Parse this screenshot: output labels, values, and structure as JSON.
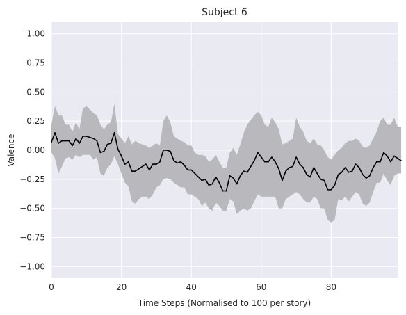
{
  "chart_data": {
    "type": "line",
    "title": "Subject 6",
    "xlabel": "Time Steps (Normalised to 100 per story)",
    "ylabel": "Valence",
    "xlim": [
      0,
      99
    ],
    "ylim": [
      -1.1,
      1.1
    ],
    "grid": true,
    "xticks": [
      0,
      20,
      40,
      60,
      80
    ],
    "xtick_labels": [
      "0",
      "20",
      "40",
      "60",
      "80"
    ],
    "yticks": [
      1.0,
      0.75,
      0.5,
      0.25,
      0.0,
      -0.25,
      -0.5,
      -0.75,
      -1.0
    ],
    "ytick_labels": [
      "1.00",
      "0.75",
      "0.50",
      "0.25",
      "0.00",
      "−0.25",
      "−0.50",
      "−0.75",
      "−1.00"
    ],
    "colors": {
      "line": "#000000",
      "band": "#b9b8bd",
      "plot_bg": "#eaeaf2",
      "grid": "#ffffff"
    },
    "series": [
      {
        "values": [
          0.07,
          0.15,
          0.06,
          0.08,
          0.08,
          0.08,
          0.04,
          0.1,
          0.06,
          0.12,
          0.12,
          0.11,
          0.1,
          0.08,
          -0.02,
          -0.01,
          0.05,
          0.06,
          0.15,
          0.01,
          -0.05,
          -0.12,
          -0.1,
          -0.18,
          -0.18,
          -0.16,
          -0.14,
          -0.12,
          -0.17,
          -0.12,
          -0.12,
          -0.1,
          0.0,
          0.0,
          -0.01,
          -0.09,
          -0.11,
          -0.1,
          -0.13,
          -0.17,
          -0.17,
          -0.2,
          -0.23,
          -0.26,
          -0.25,
          -0.3,
          -0.29,
          -0.23,
          -0.28,
          -0.35,
          -0.35,
          -0.22,
          -0.24,
          -0.29,
          -0.22,
          -0.18,
          -0.19,
          -0.14,
          -0.09,
          -0.02,
          -0.06,
          -0.1,
          -0.1,
          -0.06,
          -0.1,
          -0.16,
          -0.26,
          -0.18,
          -0.15,
          -0.14,
          -0.06,
          -0.12,
          -0.15,
          -0.21,
          -0.23,
          -0.15,
          -0.2,
          -0.25,
          -0.26,
          -0.34,
          -0.34,
          -0.3,
          -0.21,
          -0.19,
          -0.15,
          -0.19,
          -0.18,
          -0.12,
          -0.15,
          -0.21,
          -0.24,
          -0.22,
          -0.15,
          -0.1,
          -0.1,
          -0.02,
          -0.05,
          -0.1,
          -0.05,
          -0.07,
          -0.09
        ],
        "lower": [
          -0.02,
          -0.07,
          -0.2,
          -0.14,
          -0.07,
          -0.06,
          -0.08,
          -0.04,
          -0.06,
          -0.04,
          -0.04,
          -0.04,
          -0.08,
          -0.06,
          -0.2,
          -0.22,
          -0.15,
          -0.12,
          -0.05,
          -0.12,
          -0.2,
          -0.28,
          -0.31,
          -0.44,
          -0.46,
          -0.42,
          -0.4,
          -0.4,
          -0.42,
          -0.38,
          -0.32,
          -0.3,
          -0.25,
          -0.24,
          -0.25,
          -0.28,
          -0.3,
          -0.32,
          -0.32,
          -0.38,
          -0.38,
          -0.4,
          -0.42,
          -0.48,
          -0.45,
          -0.5,
          -0.52,
          -0.45,
          -0.48,
          -0.52,
          -0.52,
          -0.42,
          -0.44,
          -0.55,
          -0.52,
          -0.5,
          -0.52,
          -0.5,
          -0.44,
          -0.38,
          -0.4,
          -0.4,
          -0.4,
          -0.4,
          -0.4,
          -0.5,
          -0.5,
          -0.42,
          -0.4,
          -0.38,
          -0.36,
          -0.38,
          -0.42,
          -0.45,
          -0.45,
          -0.4,
          -0.42,
          -0.5,
          -0.5,
          -0.6,
          -0.62,
          -0.6,
          -0.42,
          -0.43,
          -0.4,
          -0.44,
          -0.4,
          -0.36,
          -0.38,
          -0.46,
          -0.48,
          -0.45,
          -0.36,
          -0.28,
          -0.28,
          -0.2,
          -0.26,
          -0.3,
          -0.22,
          -0.2,
          -0.2
        ],
        "upper": [
          0.22,
          0.38,
          0.3,
          0.3,
          0.22,
          0.22,
          0.16,
          0.24,
          0.18,
          0.36,
          0.38,
          0.35,
          0.32,
          0.3,
          0.22,
          0.18,
          0.22,
          0.24,
          0.4,
          0.14,
          0.1,
          0.06,
          0.12,
          0.05,
          0.08,
          0.06,
          0.05,
          0.04,
          0.02,
          0.04,
          0.06,
          0.04,
          0.25,
          0.3,
          0.24,
          0.12,
          0.1,
          0.08,
          0.07,
          0.04,
          0.04,
          -0.02,
          -0.04,
          -0.04,
          -0.05,
          -0.1,
          -0.08,
          -0.04,
          -0.1,
          -0.15,
          -0.15,
          -0.02,
          0.02,
          -0.04,
          0.05,
          0.15,
          0.22,
          0.26,
          0.3,
          0.33,
          0.3,
          0.22,
          0.2,
          0.28,
          0.24,
          0.18,
          0.05,
          0.06,
          0.08,
          0.1,
          0.28,
          0.2,
          0.16,
          0.08,
          0.06,
          0.1,
          0.05,
          0.04,
          0.0,
          -0.06,
          -0.08,
          -0.04,
          0.0,
          0.02,
          0.06,
          0.08,
          0.08,
          0.1,
          0.08,
          0.03,
          0.02,
          0.04,
          0.1,
          0.16,
          0.25,
          0.28,
          0.22,
          0.22,
          0.28,
          0.2,
          0.2
        ]
      }
    ]
  }
}
